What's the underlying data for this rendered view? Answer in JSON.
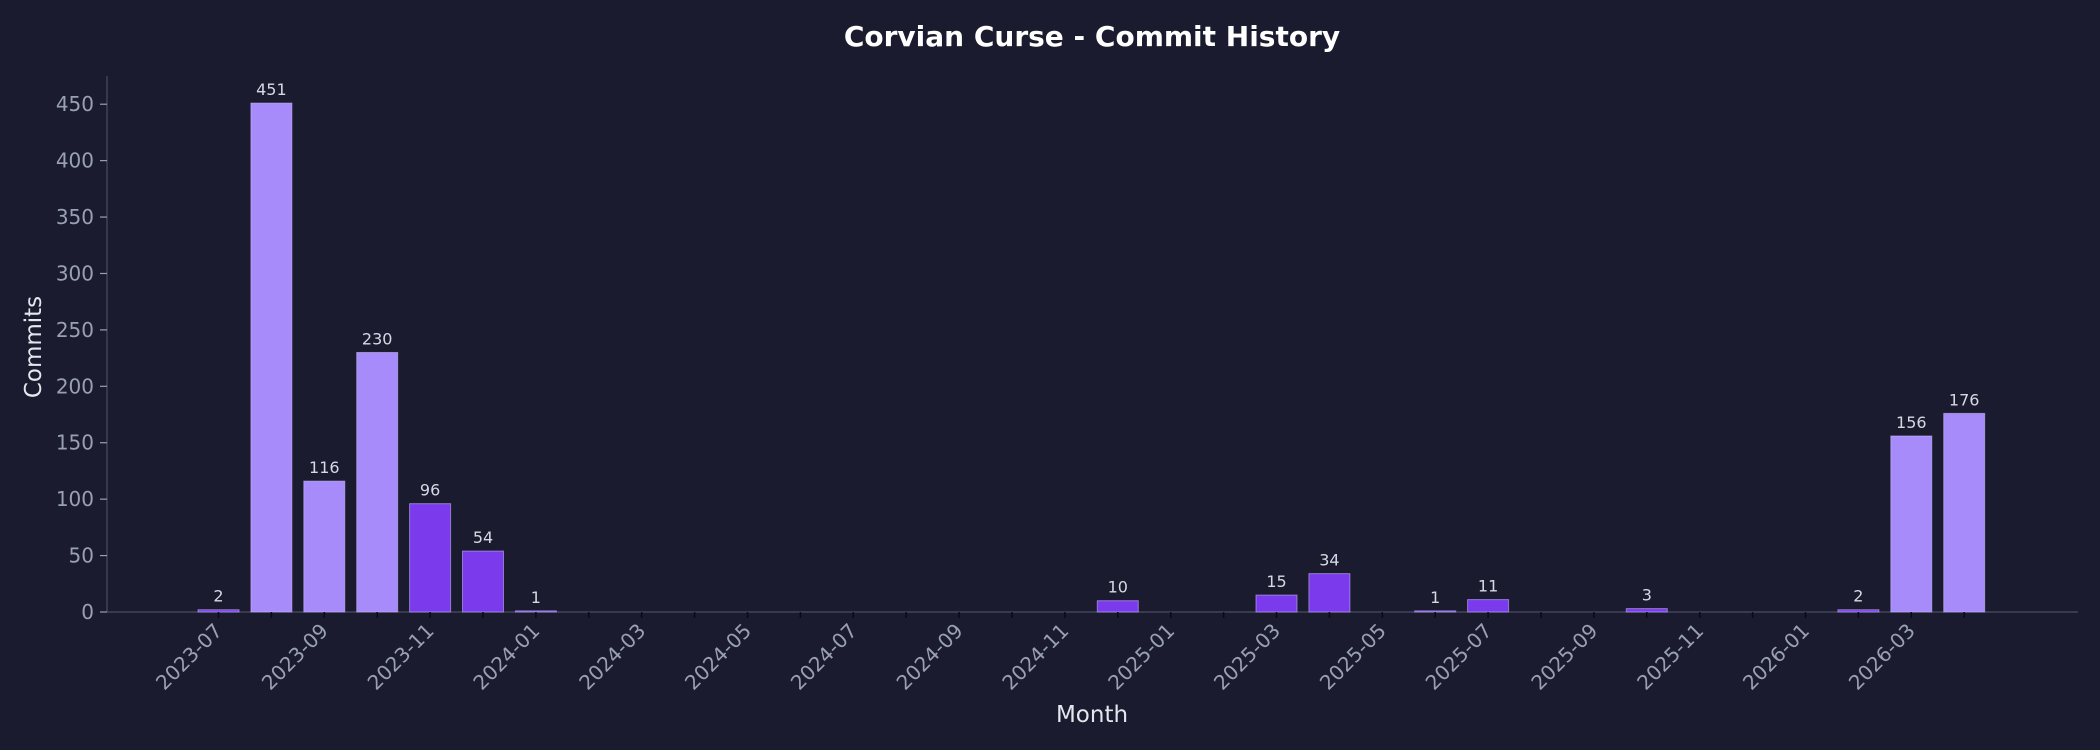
{
  "chart_data": {
    "type": "bar",
    "title": "Corvian Curse - Commit History",
    "xlabel": "Month",
    "ylabel": "Commits",
    "ylim": [
      0,
      475
    ],
    "yticks": [
      0,
      50,
      100,
      150,
      200,
      250,
      300,
      350,
      400,
      450
    ],
    "xticks": [
      "2023-07",
      "2023-09",
      "2023-11",
      "2024-01",
      "2024-03",
      "2024-05",
      "2024-07",
      "2024-09",
      "2024-11",
      "2025-01",
      "2025-03",
      "2025-05",
      "2025-07",
      "2025-09",
      "2025-11",
      "2026-01",
      "2026-03"
    ],
    "categories": [
      "2023-07",
      "2023-08",
      "2023-09",
      "2023-10",
      "2023-11",
      "2023-12",
      "2024-01",
      "2024-02",
      "2024-03",
      "2024-04",
      "2024-05",
      "2024-06",
      "2024-07",
      "2024-08",
      "2024-09",
      "2024-10",
      "2024-11",
      "2024-12",
      "2025-01",
      "2025-02",
      "2025-03",
      "2025-04",
      "2025-05",
      "2025-06",
      "2025-07",
      "2025-08",
      "2025-09",
      "2025-10",
      "2025-11",
      "2025-12",
      "2026-01",
      "2026-02",
      "2026-03",
      "2026-04"
    ],
    "values": [
      2,
      451,
      116,
      230,
      96,
      54,
      1,
      0,
      0,
      0,
      0,
      0,
      0,
      0,
      0,
      0,
      0,
      10,
      0,
      0,
      15,
      34,
      0,
      1,
      11,
      0,
      0,
      3,
      0,
      0,
      0,
      2,
      156,
      176
    ],
    "bar_colors": [
      "#7c3aed",
      "#a78bfa",
      "#a78bfa",
      "#a78bfa",
      "#7c3aed",
      "#7c3aed",
      "#7c3aed",
      "#7c3aed",
      "#7c3aed",
      "#7c3aed",
      "#7c3aed",
      "#7c3aed",
      "#7c3aed",
      "#7c3aed",
      "#7c3aed",
      "#7c3aed",
      "#7c3aed",
      "#7c3aed",
      "#7c3aed",
      "#7c3aed",
      "#7c3aed",
      "#7c3aed",
      "#7c3aed",
      "#7c3aed",
      "#7c3aed",
      "#7c3aed",
      "#7c3aed",
      "#7c3aed",
      "#7c3aed",
      "#7c3aed",
      "#7c3aed",
      "#7c3aed",
      "#a78bfa",
      "#a78bfa"
    ],
    "grid": false,
    "background": "#1a1b2e",
    "axis_color": "#4a4d66"
  }
}
